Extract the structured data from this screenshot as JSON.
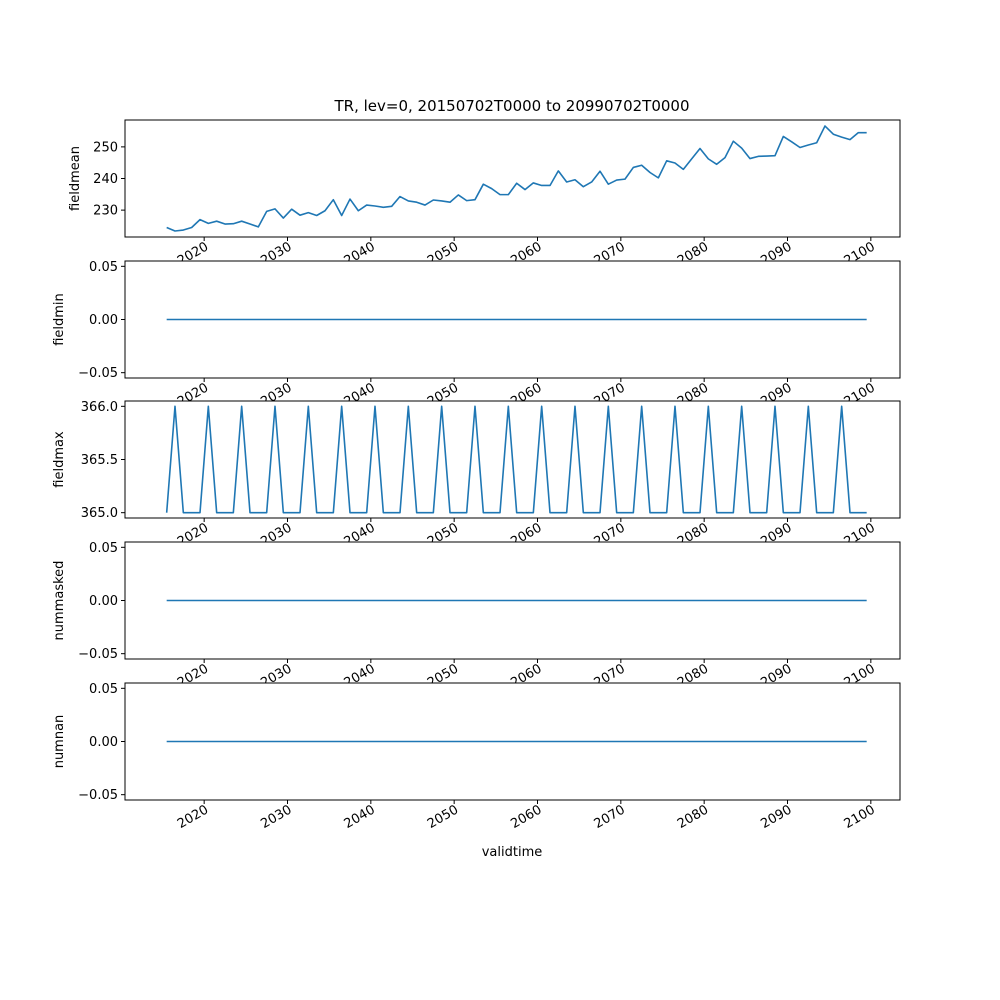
{
  "figure": {
    "title": "TR, lev=0, 20150702T0000 to 20990702T0000",
    "xlabel": "validtime",
    "xtick_labels": [
      "2020",
      "2030",
      "2040",
      "2050",
      "2060",
      "2070",
      "2080",
      "2090",
      "2100"
    ],
    "line_color": "#1f77b4"
  },
  "chart_data": [
    {
      "type": "line",
      "ylabel": "fieldmean",
      "xlim": [
        2010.5,
        2103.5
      ],
      "ylim": [
        221.5,
        258.5
      ],
      "yticks": [
        230,
        240,
        250
      ],
      "ytick_labels": [
        "230",
        "240",
        "250"
      ],
      "x": [
        2015.5,
        2016.5,
        2017.5,
        2018.5,
        2019.5,
        2020.5,
        2021.5,
        2022.5,
        2023.5,
        2024.5,
        2025.5,
        2026.5,
        2027.5,
        2028.5,
        2029.5,
        2030.5,
        2031.5,
        2032.5,
        2033.5,
        2034.5,
        2035.5,
        2036.5,
        2037.5,
        2038.5,
        2039.5,
        2040.5,
        2041.5,
        2042.5,
        2043.5,
        2044.5,
        2045.5,
        2046.5,
        2047.5,
        2048.5,
        2049.5,
        2050.5,
        2051.5,
        2052.5,
        2053.5,
        2054.5,
        2055.5,
        2056.5,
        2057.5,
        2058.5,
        2059.5,
        2060.5,
        2061.5,
        2062.5,
        2063.5,
        2064.5,
        2065.5,
        2066.5,
        2067.5,
        2068.5,
        2069.5,
        2070.5,
        2071.5,
        2072.5,
        2073.5,
        2074.5,
        2075.5,
        2076.5,
        2077.5,
        2078.5,
        2079.5,
        2080.5,
        2081.5,
        2082.5,
        2083.5,
        2084.5,
        2085.5,
        2086.5,
        2087.5,
        2088.5,
        2089.5,
        2090.5,
        2091.5,
        2092.5,
        2093.5,
        2094.5,
        2095.5,
        2096.5,
        2097.5,
        2098.5,
        2099.5
      ],
      "values": [
        224.5,
        223.4,
        223.7,
        224.5,
        227.0,
        225.8,
        226.5,
        225.6,
        225.7,
        226.5,
        225.6,
        224.7,
        229.6,
        230.4,
        227.5,
        230.3,
        228.4,
        229.2,
        228.3,
        229.8,
        233.3,
        228.3,
        233.5,
        229.8,
        231.6,
        231.3,
        230.9,
        231.2,
        234.3,
        232.9,
        232.5,
        231.6,
        233.2,
        232.9,
        232.5,
        234.8,
        233.0,
        233.3,
        238.2,
        236.8,
        234.9,
        234.9,
        238.5,
        236.5,
        238.6,
        237.8,
        237.8,
        242.4,
        238.9,
        239.6,
        237.4,
        238.9,
        242.3,
        238.2,
        239.5,
        239.8,
        243.5,
        244.2,
        241.9,
        240.2,
        245.6,
        244.9,
        242.9,
        246.2,
        249.5,
        246.2,
        244.5,
        246.6,
        251.8,
        249.6,
        246.3,
        247.0,
        247.1,
        247.2,
        253.3,
        251.6,
        249.8,
        250.6,
        251.3,
        256.6,
        254.0,
        253.1,
        252.3,
        254.5,
        254.5
      ]
    },
    {
      "type": "line",
      "ylabel": "fieldmin",
      "xlim": [
        2010.5,
        2103.5
      ],
      "ylim": [
        -0.055,
        0.055
      ],
      "yticks": [
        -0.05,
        0.0,
        0.05
      ],
      "ytick_labels": [
        "−0.05",
        "0.00",
        "0.05"
      ],
      "x": [
        2015.5,
        2099.5
      ],
      "values": [
        0.0,
        0.0
      ]
    },
    {
      "type": "line",
      "ylabel": "fieldmax",
      "xlim": [
        2010.5,
        2103.5
      ],
      "ylim": [
        364.95,
        366.05
      ],
      "yticks": [
        365.0,
        365.5,
        366.0
      ],
      "ytick_labels": [
        "365.0",
        "365.5",
        "366.0"
      ],
      "x": [
        2015.5,
        2016.5,
        2017.5,
        2018.5,
        2019.5,
        2020.5,
        2021.5,
        2022.5,
        2023.5,
        2024.5,
        2025.5,
        2026.5,
        2027.5,
        2028.5,
        2029.5,
        2030.5,
        2031.5,
        2032.5,
        2033.5,
        2034.5,
        2035.5,
        2036.5,
        2037.5,
        2038.5,
        2039.5,
        2040.5,
        2041.5,
        2042.5,
        2043.5,
        2044.5,
        2045.5,
        2046.5,
        2047.5,
        2048.5,
        2049.5,
        2050.5,
        2051.5,
        2052.5,
        2053.5,
        2054.5,
        2055.5,
        2056.5,
        2057.5,
        2058.5,
        2059.5,
        2060.5,
        2061.5,
        2062.5,
        2063.5,
        2064.5,
        2065.5,
        2066.5,
        2067.5,
        2068.5,
        2069.5,
        2070.5,
        2071.5,
        2072.5,
        2073.5,
        2074.5,
        2075.5,
        2076.5,
        2077.5,
        2078.5,
        2079.5,
        2080.5,
        2081.5,
        2082.5,
        2083.5,
        2084.5,
        2085.5,
        2086.5,
        2087.5,
        2088.5,
        2089.5,
        2090.5,
        2091.5,
        2092.5,
        2093.5,
        2094.5,
        2095.5,
        2096.5,
        2097.5,
        2098.5,
        2099.5
      ],
      "values": [
        365,
        366,
        365,
        365,
        365,
        366,
        365,
        365,
        365,
        366,
        365,
        365,
        365,
        366,
        365,
        365,
        365,
        366,
        365,
        365,
        365,
        366,
        365,
        365,
        365,
        366,
        365,
        365,
        365,
        366,
        365,
        365,
        365,
        366,
        365,
        365,
        365,
        366,
        365,
        365,
        365,
        366,
        365,
        365,
        365,
        366,
        365,
        365,
        365,
        366,
        365,
        365,
        365,
        366,
        365,
        365,
        365,
        366,
        365,
        365,
        365,
        366,
        365,
        365,
        365,
        366,
        365,
        365,
        365,
        366,
        365,
        365,
        365,
        366,
        365,
        365,
        365,
        366,
        365,
        365,
        365,
        366,
        365,
        365,
        365
      ]
    },
    {
      "type": "line",
      "ylabel": "nummasked",
      "xlim": [
        2010.5,
        2103.5
      ],
      "ylim": [
        -0.055,
        0.055
      ],
      "yticks": [
        -0.05,
        0.0,
        0.05
      ],
      "ytick_labels": [
        "−0.05",
        "0.00",
        "0.05"
      ],
      "x": [
        2015.5,
        2099.5
      ],
      "values": [
        0.0,
        0.0
      ]
    },
    {
      "type": "line",
      "ylabel": "numnan",
      "xlim": [
        2010.5,
        2103.5
      ],
      "ylim": [
        -0.055,
        0.055
      ],
      "yticks": [
        -0.05,
        0.0,
        0.05
      ],
      "ytick_labels": [
        "−0.05",
        "0.00",
        "0.05"
      ],
      "x": [
        2015.5,
        2099.5
      ],
      "values": [
        0.0,
        0.0
      ]
    }
  ]
}
